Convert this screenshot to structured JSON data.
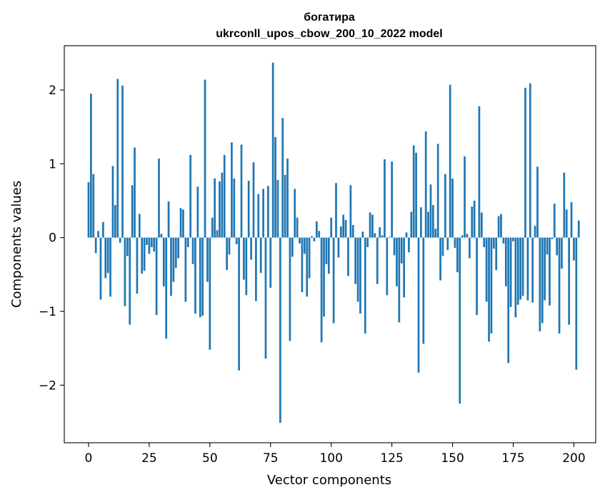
{
  "chart_data": {
    "type": "bar",
    "title_line1": "богатира",
    "title_line2": "ukrconll_upos_cbow_200_10_2022 model",
    "xlabel": "Vector components",
    "ylabel": "Components values",
    "xlim": [
      -10,
      209
    ],
    "ylim": [
      -2.78,
      2.6
    ],
    "x_ticks": [
      0,
      25,
      50,
      75,
      100,
      125,
      150,
      175,
      200
    ],
    "y_ticks": [
      -2,
      -1,
      0,
      1,
      2
    ],
    "y_tick_labels": [
      "−2",
      "−1",
      "0",
      "1",
      "2"
    ],
    "bar_color": "#1f77b4",
    "grid": false,
    "values": [
      0.75,
      1.95,
      0.86,
      -0.21,
      0.09,
      -0.84,
      0.21,
      -0.55,
      -0.48,
      -0.8,
      0.97,
      0.44,
      2.15,
      -0.07,
      2.06,
      -0.93,
      -0.25,
      -1.18,
      0.71,
      1.22,
      -0.76,
      0.32,
      -0.49,
      -0.45,
      -0.1,
      -0.22,
      -0.13,
      -0.19,
      -1.05,
      1.07,
      0.05,
      -0.66,
      -1.37,
      0.49,
      -0.79,
      -0.6,
      -0.41,
      -0.28,
      0.4,
      0.38,
      -0.87,
      -0.13,
      1.12,
      -0.36,
      -1.03,
      0.69,
      -1.08,
      -1.06,
      2.14,
      -0.6,
      -1.52,
      0.27,
      0.8,
      0.1,
      0.76,
      0.88,
      1.12,
      -0.44,
      -0.23,
      1.29,
      0.8,
      -0.09,
      -1.8,
      1.26,
      -0.57,
      -0.78,
      0.77,
      -0.3,
      1.02,
      -0.86,
      0.59,
      -0.48,
      0.66,
      -1.64,
      0.7,
      -0.68,
      2.37,
      1.36,
      0.78,
      -2.51,
      1.62,
      0.85,
      1.07,
      -1.4,
      -0.26,
      0.66,
      0.27,
      -0.08,
      -0.74,
      -0.22,
      -0.8,
      -0.55,
      0.02,
      -0.05,
      0.22,
      0.09,
      -1.42,
      -1.07,
      -0.36,
      -0.49,
      0.27,
      -1.16,
      0.74,
      -0.27,
      0.15,
      0.31,
      0.24,
      -0.52,
      0.71,
      0.17,
      -0.63,
      -0.87,
      -1.03,
      0.08,
      -1.3,
      -0.13,
      0.34,
      0.31,
      0.06,
      -0.63,
      0.14,
      0.03,
      1.06,
      -0.78,
      0.01,
      1.03,
      -0.24,
      -0.66,
      -1.15,
      -0.35,
      -0.81,
      0.07,
      -0.2,
      0.35,
      1.25,
      1.15,
      -1.83,
      0.41,
      -1.44,
      1.44,
      0.35,
      0.72,
      0.44,
      0.12,
      1.27,
      -0.58,
      -0.25,
      0.86,
      -0.17,
      2.07,
      0.8,
      -0.14,
      -0.47,
      -2.25,
      0.03,
      1.1,
      0.05,
      -0.28,
      0.42,
      0.5,
      -1.05,
      1.78,
      0.34,
      -0.13,
      -0.87,
      -1.41,
      -1.3,
      -0.15,
      -0.44,
      0.29,
      0.32,
      -0.08,
      -0.66,
      -1.7,
      -0.94,
      -0.05,
      -1.08,
      -0.91,
      -0.84,
      -0.79,
      2.03,
      -0.85,
      2.09,
      -0.88,
      0.16,
      0.96,
      -1.27,
      -1.16,
      -0.85,
      -0.23,
      -0.92,
      -0.02,
      0.46,
      -0.24,
      -1.3,
      -0.42,
      0.88,
      0.38,
      -1.18,
      0.48,
      -0.31,
      -1.79,
      0.23
    ]
  }
}
